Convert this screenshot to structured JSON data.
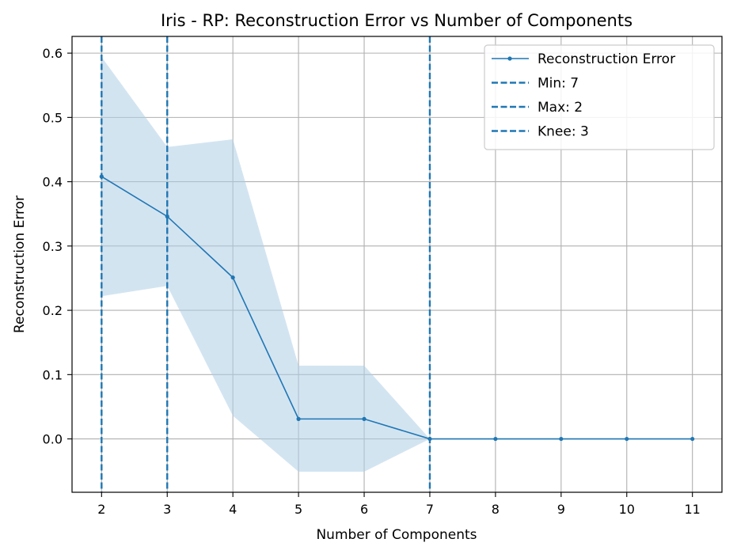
{
  "chart_data": {
    "type": "line",
    "title": "Iris - RP: Reconstruction Error vs Number of Components",
    "xlabel": "Number of Components",
    "ylabel": "Reconstruction Error",
    "xlim": [
      1.55,
      11.45
    ],
    "ylim": [
      -0.083,
      0.626
    ],
    "x_ticks": [
      2,
      3,
      4,
      5,
      6,
      7,
      8,
      9,
      10,
      11
    ],
    "y_ticks": [
      0.0,
      0.1,
      0.2,
      0.3,
      0.4,
      0.5,
      0.6
    ],
    "grid": true,
    "legend_position": "top-right",
    "series": [
      {
        "name": "Reconstruction Error",
        "color": "#1f77b4",
        "x": [
          2,
          3,
          4,
          5,
          6,
          7,
          8,
          9,
          10,
          11
        ],
        "y": [
          0.408,
          0.346,
          0.251,
          0.031,
          0.031,
          0.0,
          0.0,
          0.0,
          0.0,
          0.0
        ],
        "band_lower": [
          0.222,
          0.238,
          0.036,
          -0.051,
          -0.051,
          0.0,
          0.0,
          0.0,
          0.0,
          0.0
        ],
        "band_upper": [
          0.594,
          0.454,
          0.466,
          0.114,
          0.114,
          0.0,
          0.0,
          0.0,
          0.0,
          0.0
        ],
        "band_color": "#aecde6"
      }
    ],
    "vlines": [
      {
        "name": "Min: 7",
        "x": 7,
        "color": "#1f77b4",
        "style": "dashed"
      },
      {
        "name": "Max: 2",
        "x": 2,
        "color": "#1f77b4",
        "style": "dashed"
      },
      {
        "name": "Knee: 3",
        "x": 3,
        "color": "#1f77b4",
        "style": "dashed"
      }
    ]
  }
}
